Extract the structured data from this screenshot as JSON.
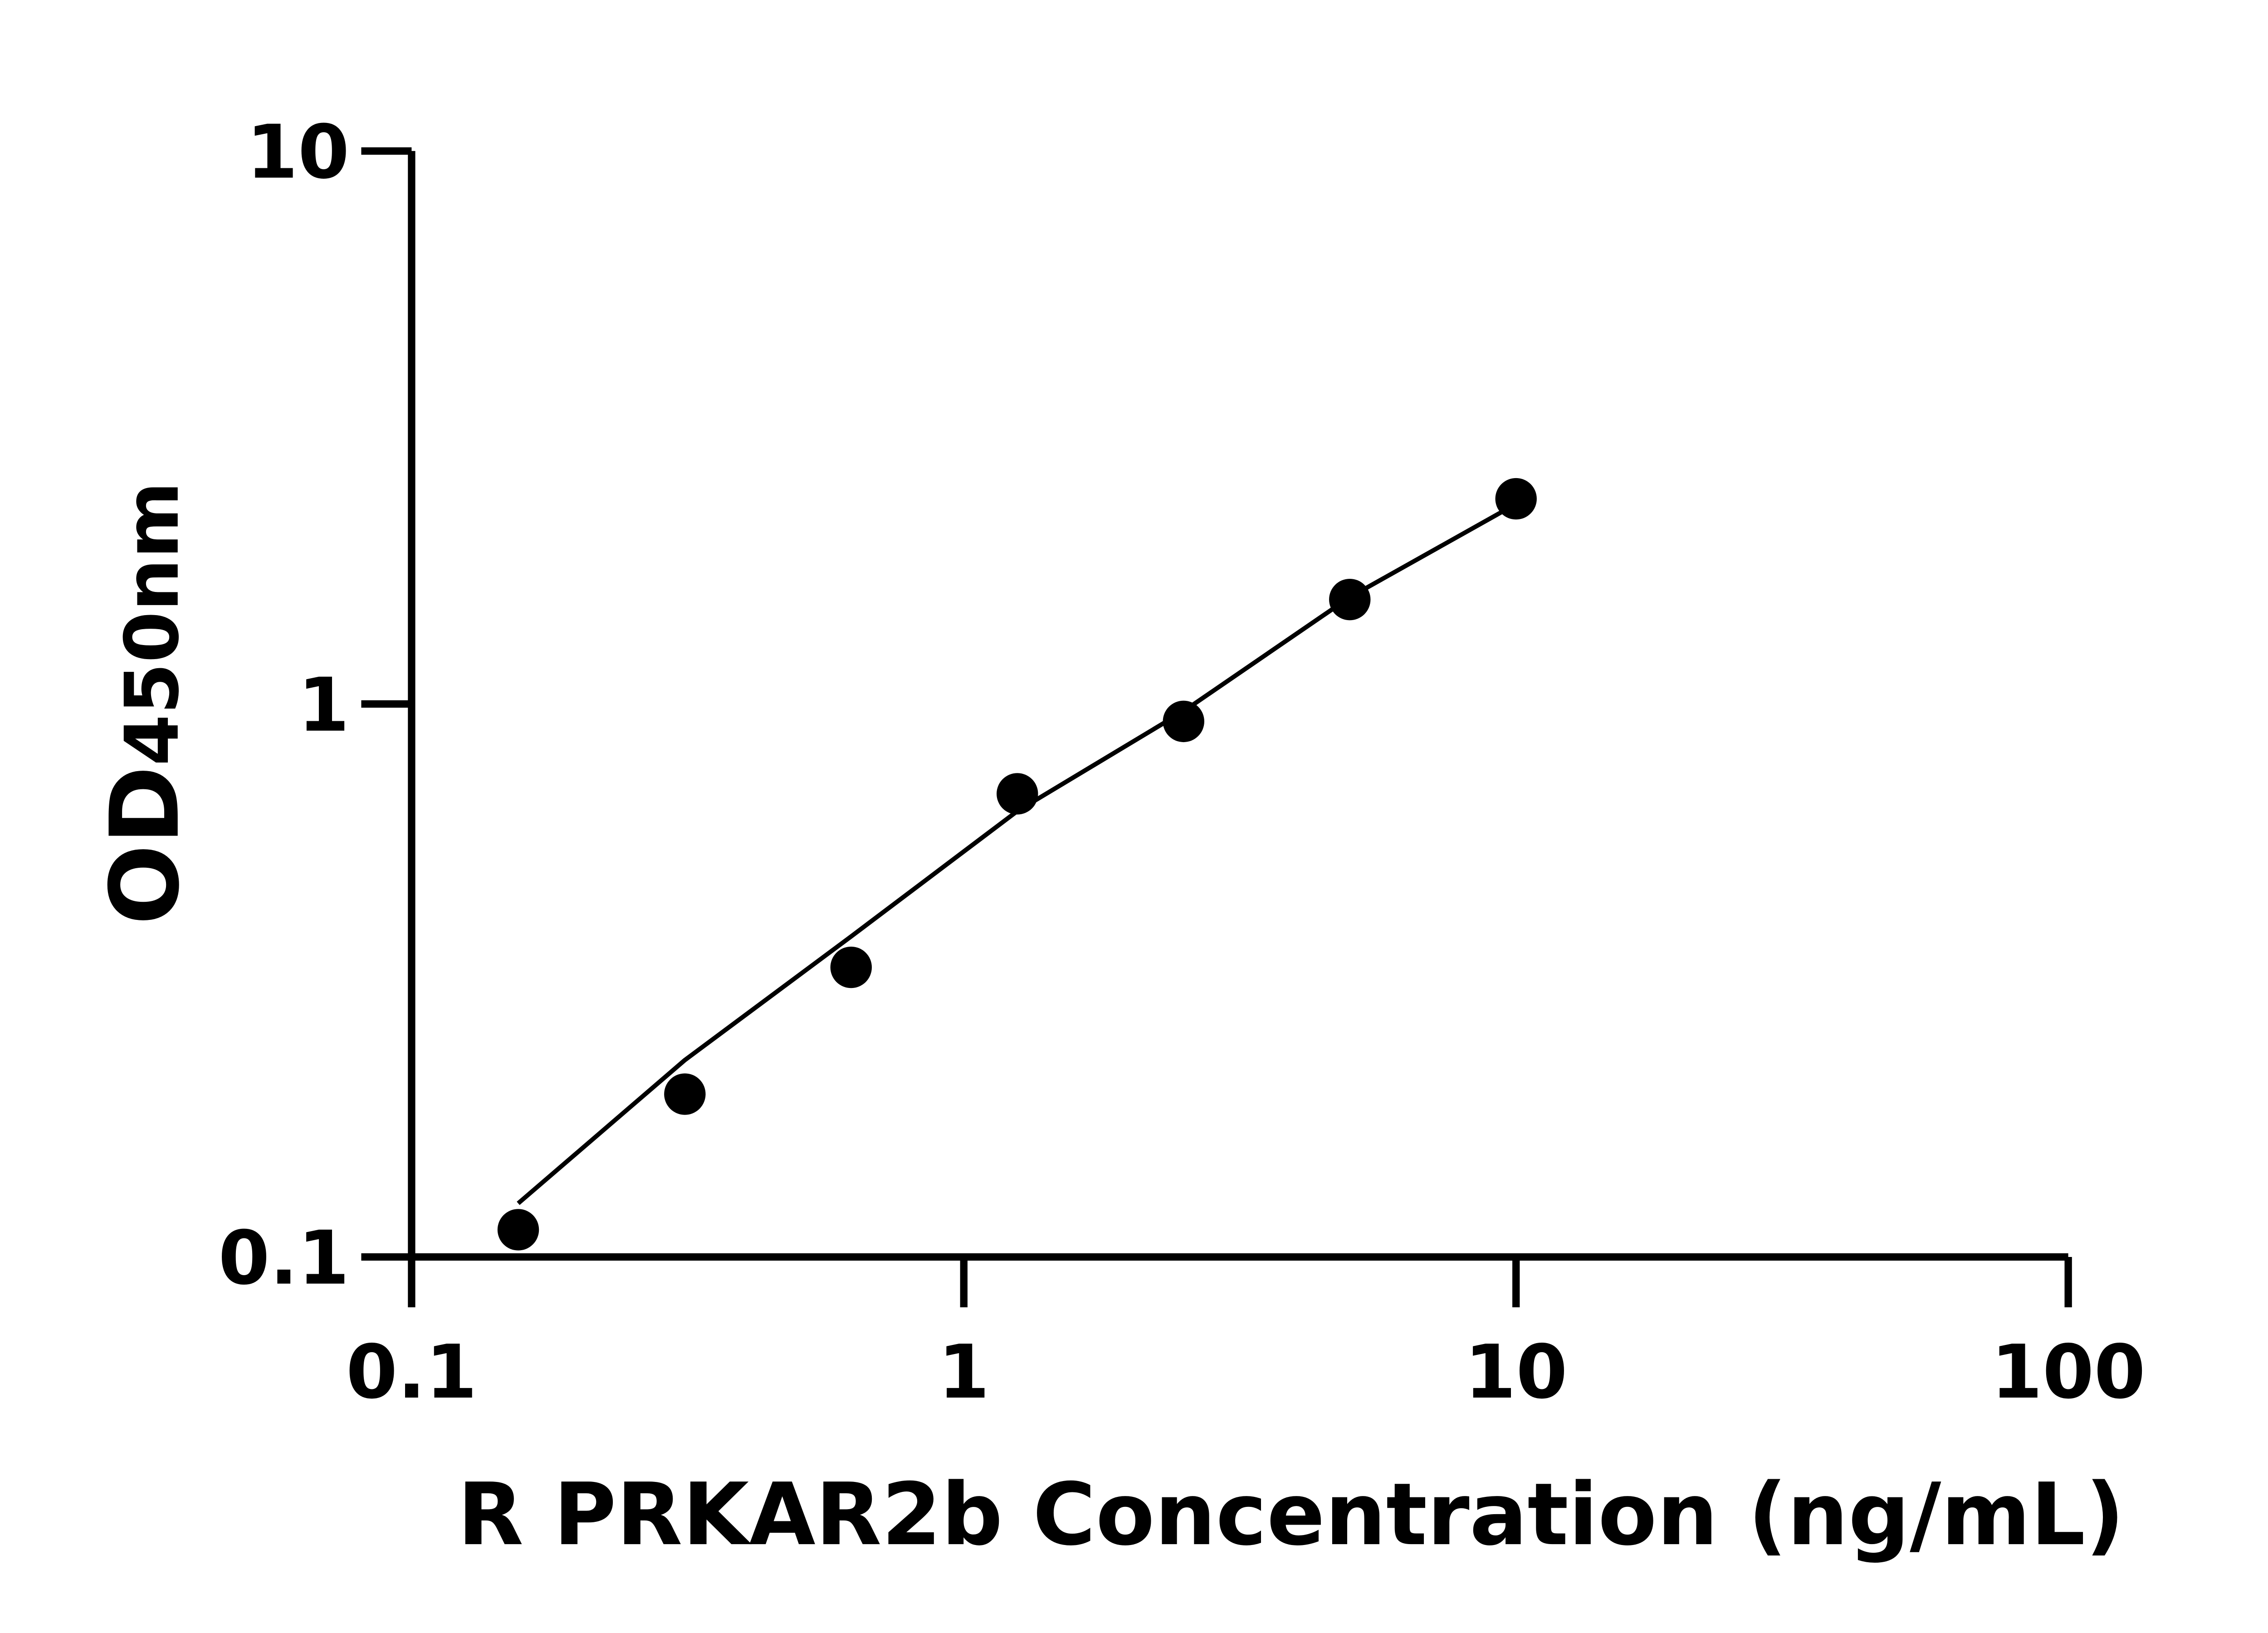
{
  "chart_data": {
    "type": "scatter",
    "title": "",
    "xlabel": "R PRKAR2b Concentration (ng/mL)",
    "ylabel": {
      "main": "OD",
      "sub": "450nm"
    },
    "xscale": "log",
    "yscale": "log",
    "xlim": [
      0.1,
      100
    ],
    "ylim": [
      0.1,
      10
    ],
    "xticks": [
      "0.1",
      "1",
      "10",
      "100"
    ],
    "yticks": [
      "0.1",
      "1",
      "10"
    ],
    "grid": false,
    "points": [
      {
        "x": 0.156,
        "y": 0.112
      },
      {
        "x": 0.3125,
        "y": 0.197
      },
      {
        "x": 0.625,
        "y": 0.334
      },
      {
        "x": 1.25,
        "y": 0.688
      },
      {
        "x": 2.5,
        "y": 0.93
      },
      {
        "x": 5,
        "y": 1.545
      },
      {
        "x": 10,
        "y": 2.35
      }
    ],
    "fit_curve": [
      {
        "x": 0.156,
        "y": 0.125
      },
      {
        "x": 0.3125,
        "y": 0.227
      },
      {
        "x": 0.625,
        "y": 0.38
      },
      {
        "x": 1.25,
        "y": 0.64
      },
      {
        "x": 2.5,
        "y": 0.97
      },
      {
        "x": 5,
        "y": 1.56
      },
      {
        "x": 10,
        "y": 2.3
      }
    ],
    "colors": {
      "marker": "#000000",
      "line": "#000000",
      "axis": "#000000"
    }
  }
}
